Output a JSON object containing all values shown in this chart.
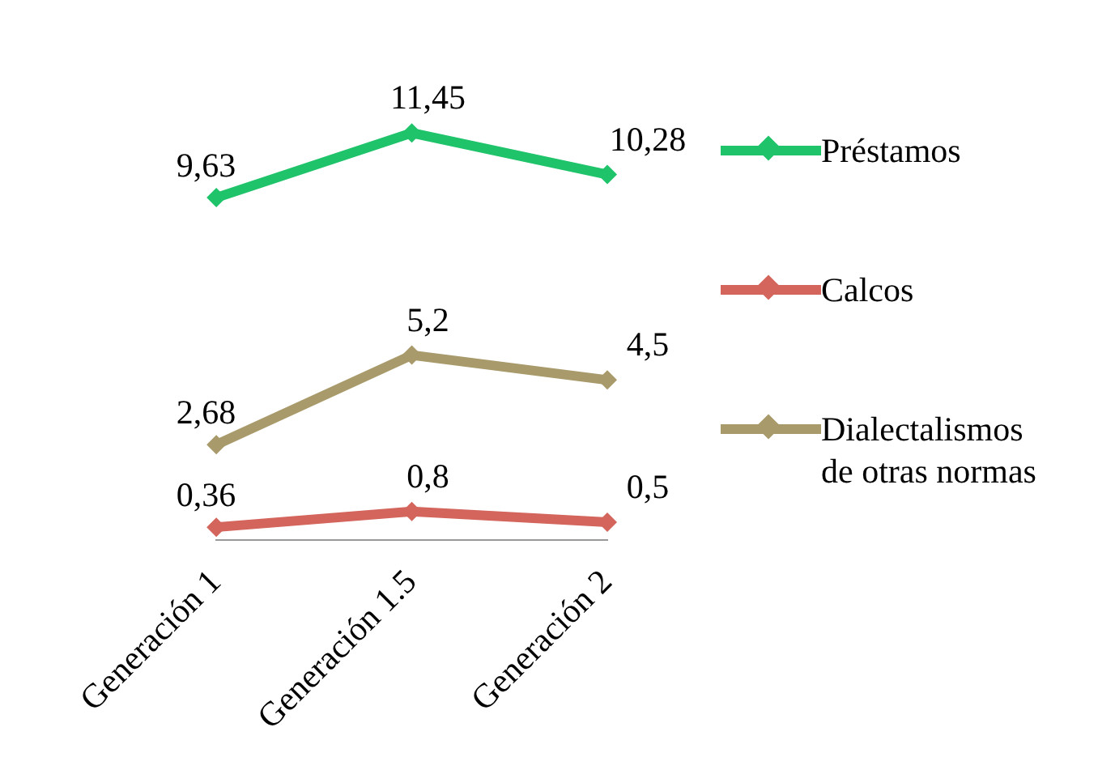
{
  "chart_data": {
    "type": "line",
    "categories": [
      "Generación 1",
      "Generación 1.5",
      "Generación 2"
    ],
    "series": [
      {
        "name": "Préstamos",
        "color": "#1ec36a",
        "values": [
          9.63,
          11.45,
          10.28
        ],
        "value_labels": [
          "9,63",
          "11,45",
          "10,28"
        ]
      },
      {
        "name": "Calcos",
        "color": "#d4655c",
        "values": [
          0.36,
          0.8,
          0.5
        ],
        "value_labels": [
          "0,36",
          "0,8",
          "0,5"
        ]
      },
      {
        "name": "Dialectalismos de otras normas",
        "color": "#a89a6a",
        "values": [
          2.68,
          5.2,
          4.5
        ],
        "value_labels": [
          "2,68",
          "5,2",
          "4,5"
        ]
      }
    ],
    "tick_labels": "x",
    "grid": false,
    "legend": "right",
    "marker": "diamond",
    "line_style": "solid"
  }
}
